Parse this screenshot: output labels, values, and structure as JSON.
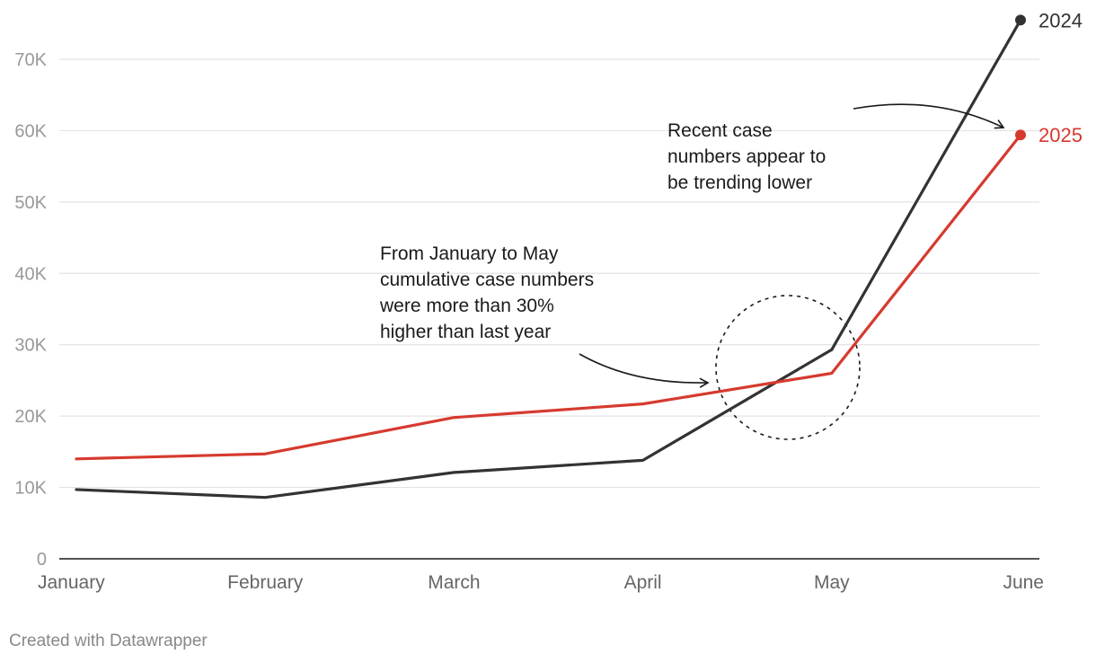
{
  "colors": {
    "2024": "#333333",
    "2025": "#d63a2f"
  },
  "chart_data": {
    "type": "line",
    "title": "",
    "xlabel": "",
    "ylabel": "",
    "categories": [
      "January",
      "February",
      "March",
      "April",
      "May",
      "June"
    ],
    "series": [
      {
        "name": "2024",
        "values": [
          9700,
          8600,
          12100,
          13800,
          29300,
          75500
        ]
      },
      {
        "name": "2025",
        "values": [
          14000,
          14700,
          19800,
          21700,
          26000,
          59400
        ]
      }
    ],
    "ylim": [
      0,
      70000
    ],
    "yticks": [
      {
        "value": 0,
        "label": "0"
      },
      {
        "value": 10000,
        "label": "10K"
      },
      {
        "value": 20000,
        "label": "20K"
      },
      {
        "value": 30000,
        "label": "30K"
      },
      {
        "value": 40000,
        "label": "40K"
      },
      {
        "value": 50000,
        "label": "50K"
      },
      {
        "value": 60000,
        "label": "60K"
      },
      {
        "value": 70000,
        "label": "70K"
      }
    ],
    "grid": true,
    "legend": "end-of-line labels",
    "annotations": [
      {
        "lines": [
          "From January to May",
          "cumulative case numbers",
          "were more than 30%",
          "higher than last year"
        ]
      },
      {
        "lines": [
          "Recent case",
          "numbers appear to",
          "be trending lower"
        ]
      }
    ]
  },
  "footer": {
    "credit": "Created with Datawrapper"
  }
}
